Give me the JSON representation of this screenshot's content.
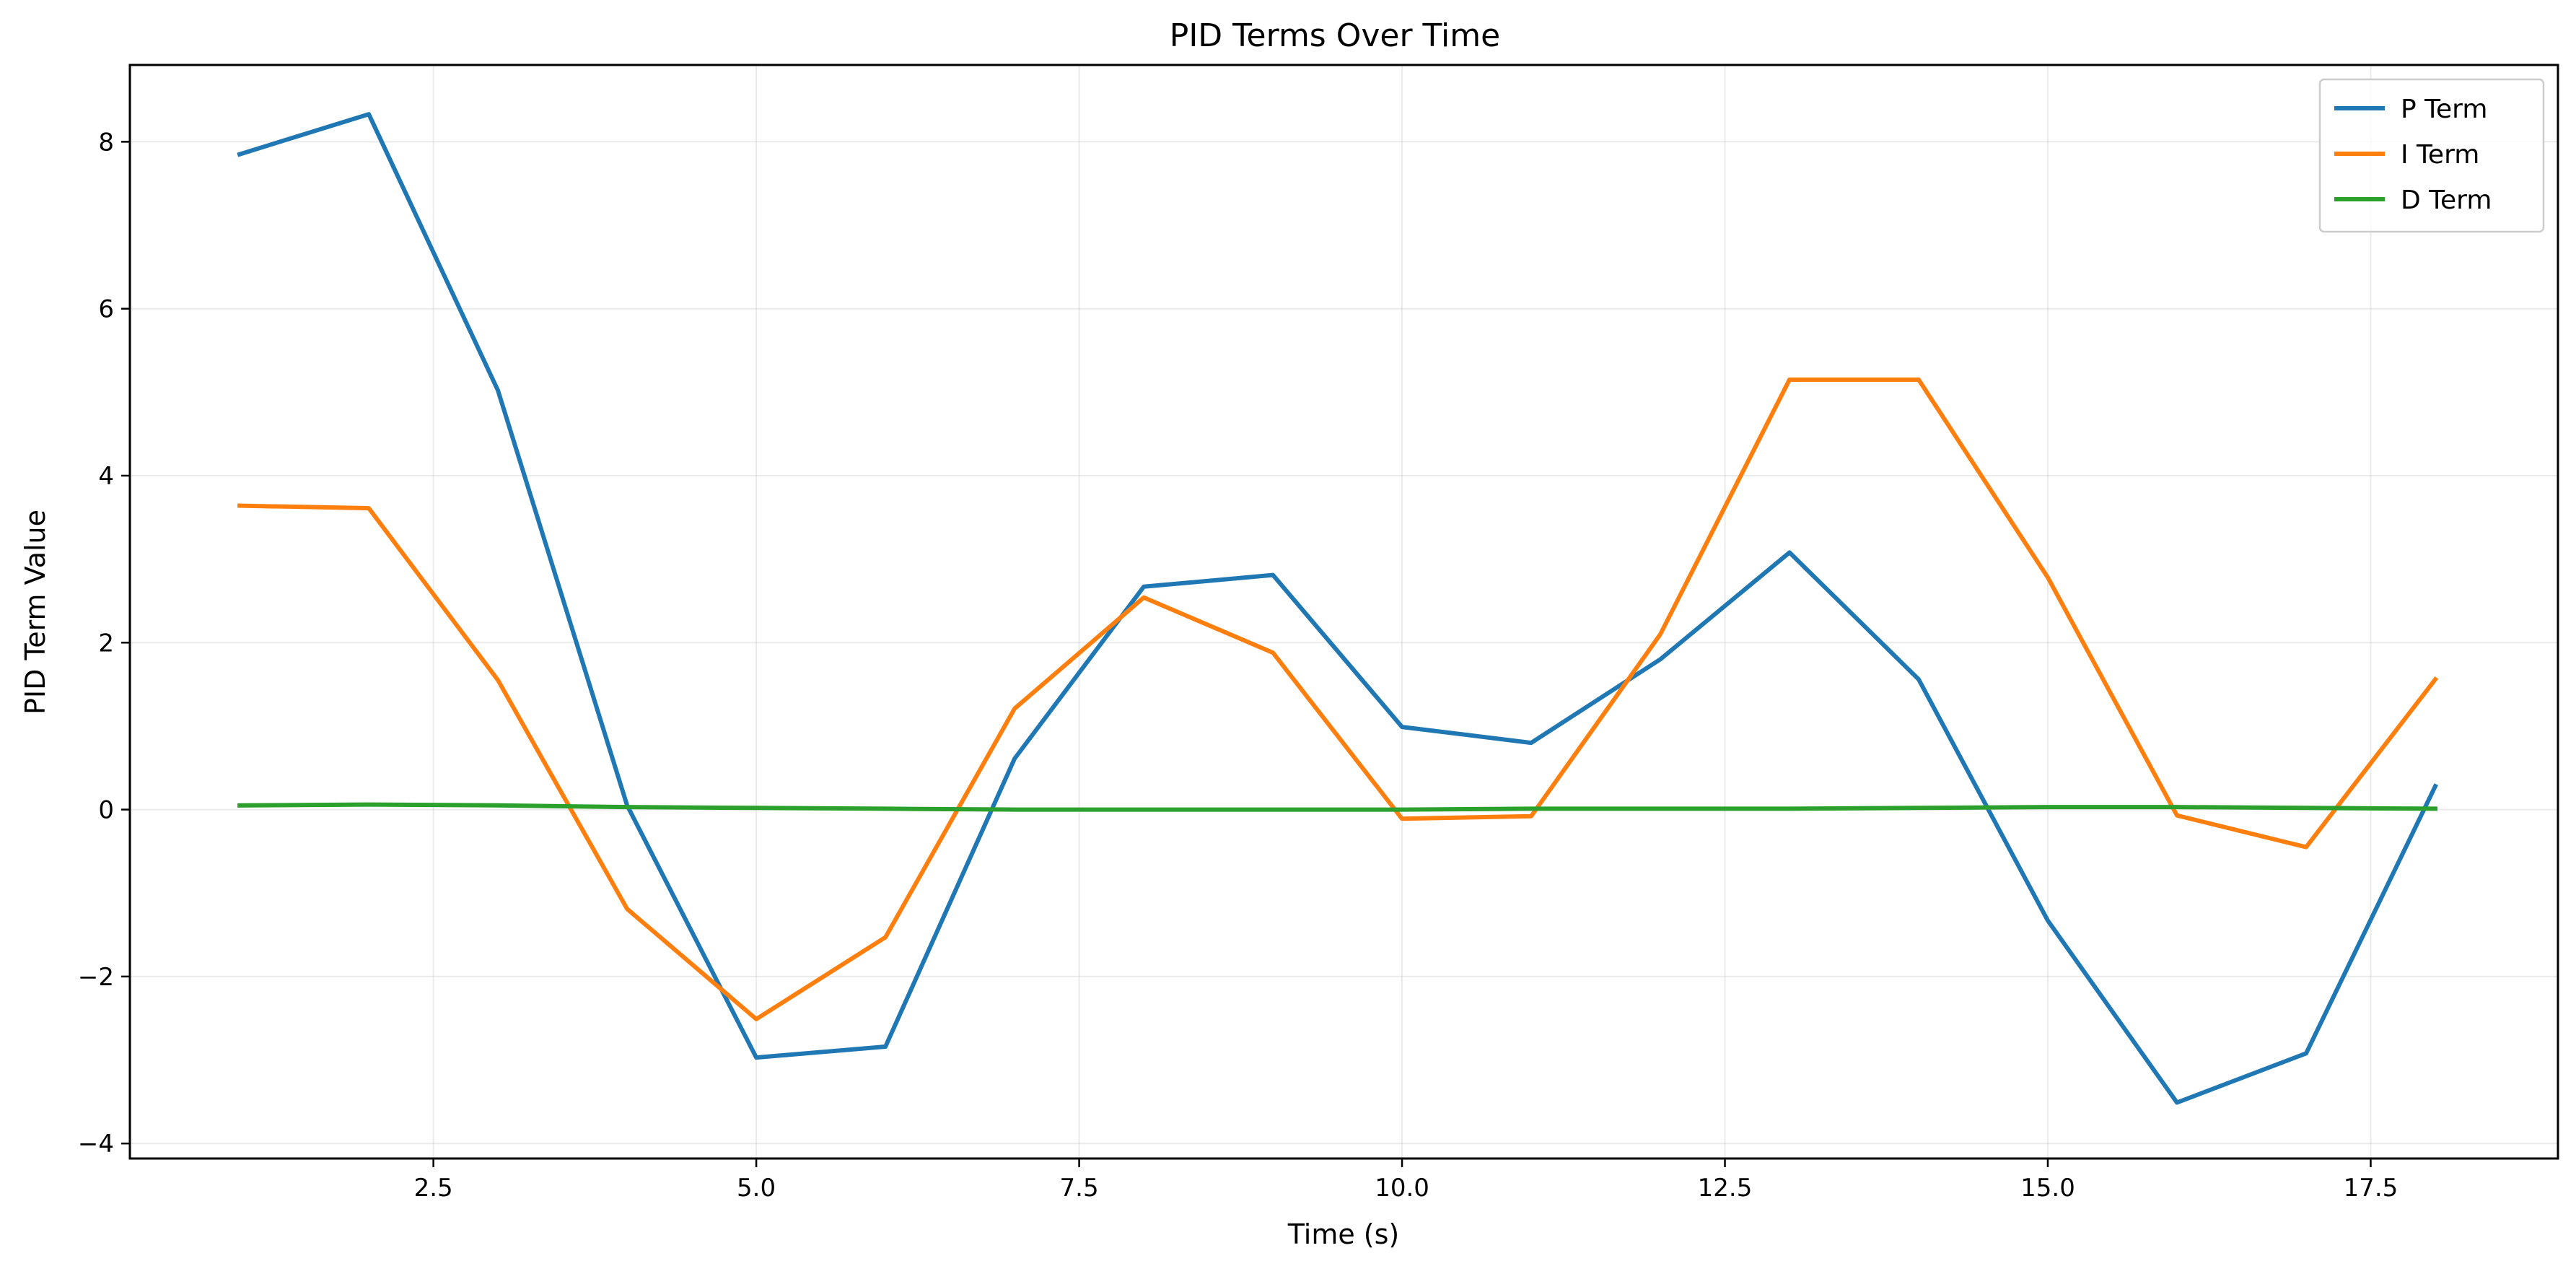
{
  "chart_data": {
    "type": "line",
    "title": "PID Terms Over Time",
    "xlabel": "Time (s)",
    "ylabel": "PID Term Value",
    "xlim": [
      0.15,
      18.95
    ],
    "ylim": [
      -4.18,
      8.92
    ],
    "xticks": [
      2.5,
      5.0,
      7.5,
      10.0,
      12.5,
      15.0,
      17.5
    ],
    "xtick_labels": [
      "2.5",
      "5.0",
      "7.5",
      "10.0",
      "12.5",
      "15.0",
      "17.5"
    ],
    "yticks": [
      -4,
      -2,
      0,
      2,
      4,
      6,
      8
    ],
    "ytick_labels": [
      "−4",
      "−2",
      "0",
      "2",
      "4",
      "6",
      "8"
    ],
    "grid": true,
    "legend_position": "top-right",
    "x": [
      1.0,
      2.0,
      3.0,
      4.0,
      5.0,
      6.0,
      7.0,
      8.0,
      9.0,
      10.0,
      11.0,
      12.0,
      13.0,
      14.0,
      15.0,
      16.0,
      17.0,
      18.0
    ],
    "series": [
      {
        "name": "P Term",
        "color": "#1f77b4",
        "values": [
          7.85,
          8.33,
          5.02,
          0.05,
          -2.97,
          -2.84,
          0.61,
          2.67,
          2.81,
          0.99,
          0.8,
          1.8,
          3.08,
          1.56,
          -1.33,
          -3.51,
          -2.92,
          0.28
        ]
      },
      {
        "name": "I Term",
        "color": "#ff7f0e",
        "values": [
          3.64,
          3.61,
          1.55,
          -1.19,
          -2.51,
          -1.53,
          1.21,
          2.54,
          1.88,
          -0.11,
          -0.08,
          2.1,
          5.15,
          5.15,
          2.78,
          -0.07,
          -0.45,
          1.56
        ]
      },
      {
        "name": "D Term",
        "color": "#2ca02c",
        "values": [
          0.05,
          0.06,
          0.05,
          0.03,
          0.02,
          0.01,
          0.0,
          0.0,
          0.0,
          0.0,
          0.01,
          0.01,
          0.01,
          0.02,
          0.03,
          0.03,
          0.02,
          0.01
        ]
      }
    ]
  }
}
